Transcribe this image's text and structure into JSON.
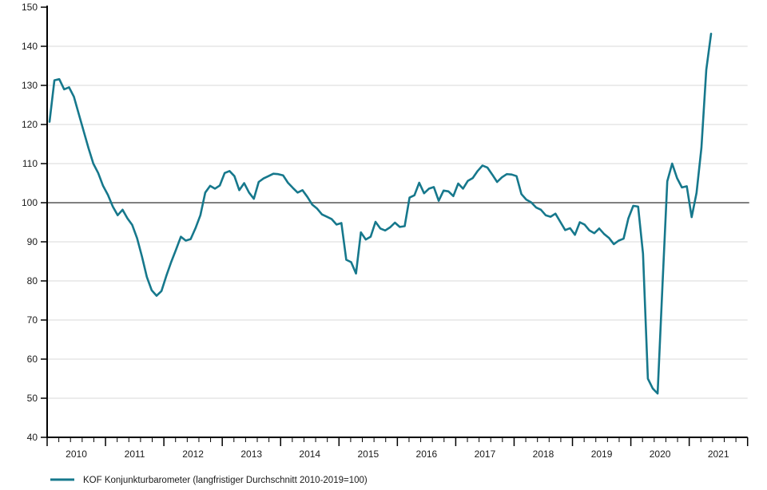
{
  "chart_data": {
    "type": "line",
    "title": "",
    "legend": "KOF Konjunkturbarometer (langfristiger Durchschnitt 2010-2019=100)",
    "legend_position": "bottom-left",
    "grid": true,
    "baseline": 100,
    "ylim": [
      40,
      150
    ],
    "y_ticks": [
      40,
      50,
      60,
      70,
      80,
      90,
      100,
      110,
      120,
      130,
      140,
      150
    ],
    "x_tick_labels": [
      "2010",
      "2011",
      "2012",
      "2013",
      "2014",
      "2015",
      "2016",
      "2017",
      "2018",
      "2019",
      "2020",
      "2021"
    ],
    "x_range_years": [
      2010,
      2022
    ],
    "colors": {
      "line": "#16788c",
      "baseline": "#808080",
      "grid": "#d9d9d9",
      "axis": "#000000",
      "text": "#1a1a1a",
      "background": "#ffffff"
    },
    "series": [
      {
        "name": "KOF Konjunkturbarometer",
        "start": "2010-01",
        "frequency": "monthly",
        "values": [
          120.7,
          131.3,
          131.6,
          129.0,
          129.5,
          127.1,
          122.7,
          118.3,
          114.0,
          110.0,
          107.6,
          104.3,
          102.0,
          99.0,
          96.8,
          98.2,
          96.0,
          94.3,
          90.9,
          86.2,
          81.0,
          77.6,
          76.2,
          77.4,
          81.3,
          84.8,
          88.0,
          91.3,
          90.3,
          90.7,
          93.5,
          96.8,
          102.6,
          104.3,
          103.6,
          104.4,
          107.6,
          108.1,
          106.8,
          103.2,
          105.0,
          102.6,
          101.0,
          105.3,
          106.2,
          106.8,
          107.4,
          107.3,
          107.0,
          105.1,
          103.8,
          102.6,
          103.2,
          101.5,
          99.5,
          98.5,
          97.0,
          96.4,
          95.8,
          94.4,
          94.8,
          85.4,
          84.8,
          81.9,
          92.4,
          90.6,
          91.3,
          95.1,
          93.4,
          92.9,
          93.7,
          94.9,
          93.8,
          94.0,
          101.3,
          101.9,
          105.1,
          102.4,
          103.6,
          104.0,
          100.5,
          103.1,
          102.9,
          101.7,
          104.9,
          103.6,
          105.6,
          106.3,
          108.1,
          109.5,
          109.0,
          107.2,
          105.3,
          106.5,
          107.3,
          107.2,
          106.8,
          102.2,
          100.8,
          100.1,
          98.8,
          98.2,
          96.8,
          96.4,
          97.2,
          95.1,
          93.0,
          93.5,
          91.8,
          95.0,
          94.4,
          92.9,
          92.2,
          93.4,
          92.0,
          91.0,
          89.4,
          90.3,
          90.8,
          96.0,
          99.2,
          99.0,
          87.0,
          55.0,
          52.5,
          51.2,
          79.0,
          105.5,
          110.0,
          106.3,
          103.9,
          104.2,
          96.3,
          102.5,
          114.0,
          134.0,
          143.2
        ]
      }
    ]
  },
  "legend": {
    "label": "KOF Konjunkturbarometer (langfristiger Durchschnitt 2010-2019=100)"
  }
}
